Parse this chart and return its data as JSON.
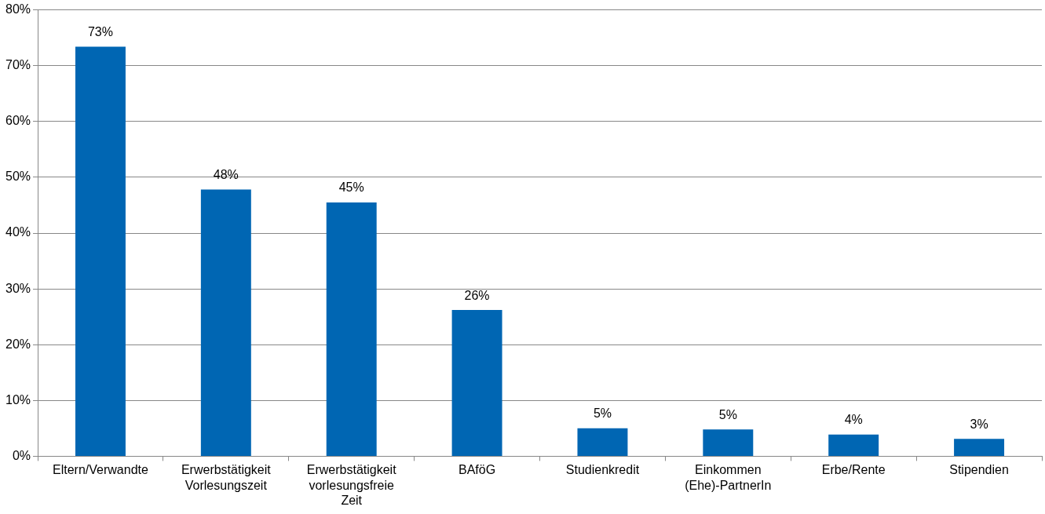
{
  "chart_data": {
    "type": "bar",
    "categories": [
      "Eltern/Verwandte",
      "Erwerbstätigkeit Vorlesungszeit",
      "Erwerbstätigkeit vorlesungsfreie Zeit",
      "BAföG",
      "Studienkredit",
      "Einkommen (Ehe)-PartnerIn",
      "Erbe/Rente",
      "Stipendien"
    ],
    "values": [
      73.4,
      47.8,
      45.5,
      26.2,
      5.0,
      4.8,
      3.9,
      3.1
    ],
    "value_labels": [
      "73%",
      "48%",
      "45%",
      "26%",
      "5%",
      "5%",
      "4%",
      "3%"
    ],
    "color": "#0066b3",
    "ylim": [
      0,
      80
    ],
    "yticks": [
      {
        "value": 0,
        "label": "0%"
      },
      {
        "value": 10,
        "label": "10%"
      },
      {
        "value": 20,
        "label": "20%"
      },
      {
        "value": 30,
        "label": "30%"
      },
      {
        "value": 40,
        "label": "40%"
      },
      {
        "value": 50,
        "label": "50%"
      },
      {
        "value": 60,
        "label": "60%"
      },
      {
        "value": 70,
        "label": "70%"
      },
      {
        "value": 80,
        "label": "80%"
      }
    ],
    "grid": "y",
    "legend": false
  }
}
